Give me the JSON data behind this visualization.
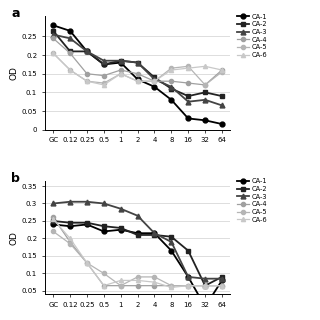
{
  "x_labels": [
    "GC",
    "0.12",
    "0.25",
    "0.5",
    "1",
    "2",
    "4",
    "8",
    "16",
    "32",
    "64"
  ],
  "x_positions": [
    0,
    1,
    2,
    3,
    4,
    5,
    6,
    7,
    8,
    9,
    10
  ],
  "panel_a": {
    "CA1": [
      0.28,
      0.265,
      0.21,
      0.175,
      0.18,
      0.135,
      0.115,
      0.08,
      0.03,
      0.025,
      0.015
    ],
    "CA2": [
      0.265,
      0.21,
      0.21,
      0.175,
      0.185,
      0.18,
      0.14,
      0.11,
      0.09,
      0.1,
      0.09
    ],
    "CA3": [
      0.255,
      0.245,
      0.21,
      0.185,
      0.185,
      0.18,
      0.135,
      0.115,
      0.075,
      0.08,
      0.065
    ],
    "CA4": [
      0.245,
      0.205,
      0.15,
      0.145,
      0.16,
      0.15,
      0.13,
      0.13,
      0.125,
      0.12,
      0.16
    ],
    "CA5": [
      0.205,
      0.16,
      0.13,
      0.125,
      0.15,
      0.13,
      0.13,
      0.165,
      0.17,
      0.12,
      0.155
    ],
    "CA6": [
      0.205,
      0.16,
      0.13,
      0.12,
      0.15,
      0.13,
      0.13,
      0.16,
      0.165,
      0.17,
      0.16
    ]
  },
  "panel_b": {
    "CA1": [
      0.24,
      0.235,
      0.24,
      0.22,
      0.225,
      0.215,
      0.215,
      0.165,
      0.09,
      0.005,
      0.08
    ],
    "CA2": [
      0.25,
      0.245,
      0.245,
      0.235,
      0.23,
      0.21,
      0.21,
      0.205,
      0.165,
      0.065,
      0.09
    ],
    "CA3": [
      0.3,
      0.305,
      0.305,
      0.3,
      0.285,
      0.265,
      0.215,
      0.19,
      0.09,
      0.085,
      0.085
    ],
    "CA4": [
      0.26,
      0.19,
      0.13,
      0.065,
      0.065,
      0.065,
      0.065,
      0.065,
      0.065,
      0.065,
      0.065
    ],
    "CA5": [
      0.22,
      0.185,
      0.13,
      0.1,
      0.065,
      0.09,
      0.09,
      0.065,
      0.065,
      0.065,
      0.065
    ],
    "CA6": [
      0.255,
      0.2,
      0.13,
      0.065,
      0.08,
      0.08,
      0.075,
      0.06,
      0.065,
      0.065,
      0.065
    ]
  },
  "line_colors": [
    "#000000",
    "#222222",
    "#444444",
    "#a0a0a0",
    "#b5b5b5",
    "#c8c8c8"
  ],
  "markers_list": [
    "o",
    "s",
    "^",
    "o",
    "o",
    "^"
  ],
  "legend_labels": [
    "CA-1",
    "CA-2",
    "CA-3",
    "CA-4",
    "CA-5",
    "CA-6"
  ],
  "ylabel": "OD"
}
